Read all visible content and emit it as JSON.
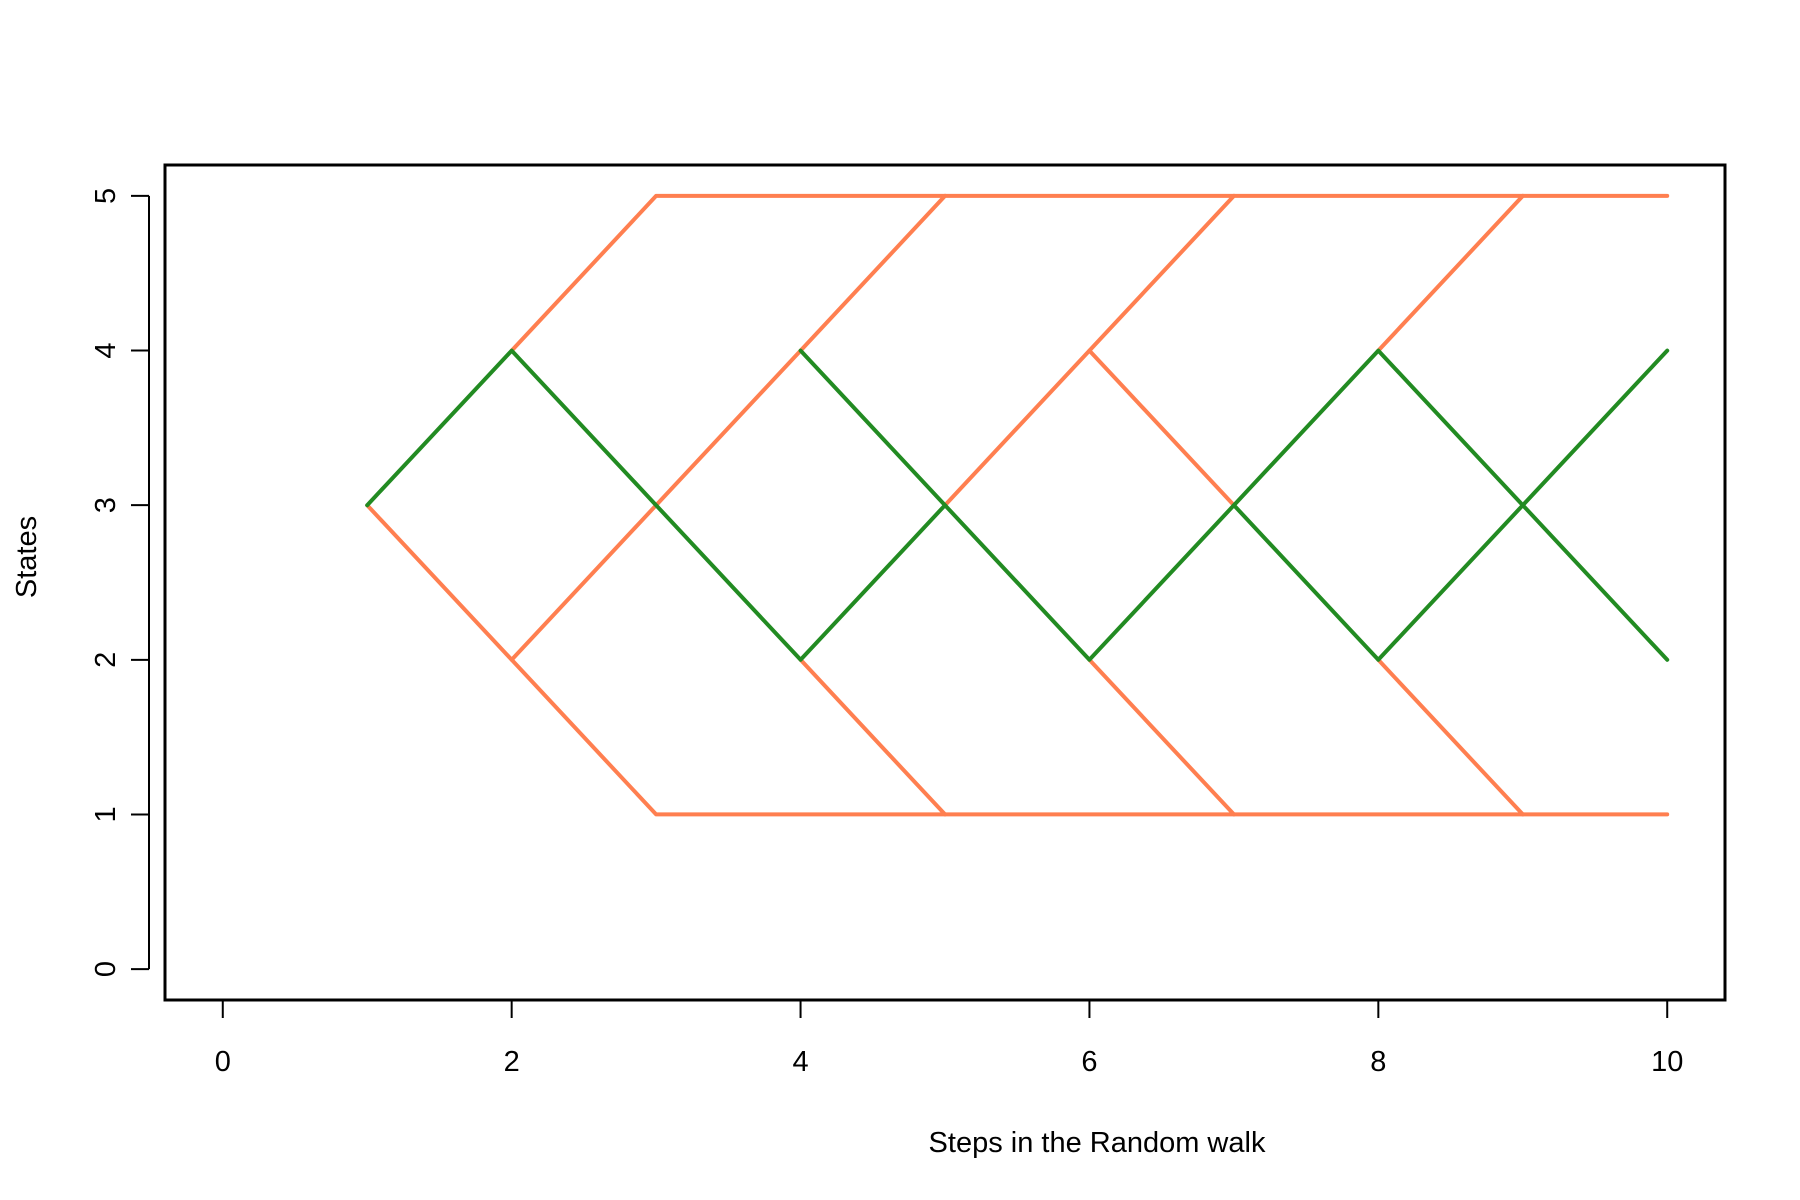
{
  "chart_data": {
    "type": "line",
    "title": "",
    "xlabel": "Steps in the Random walk",
    "ylabel": "States",
    "xlim": [
      -0.4,
      10.4
    ],
    "ylim": [
      -0.2,
      5.2
    ],
    "x_ticks": [
      0,
      2,
      4,
      6,
      8,
      10
    ],
    "y_ticks": [
      0,
      1,
      2,
      3,
      4,
      5
    ],
    "grid": false,
    "legend": "none",
    "colors": {
      "possible": "#ff7f50",
      "observed": "#228b22"
    },
    "series": [
      {
        "role": "possible",
        "segments": [
          [
            [
              1,
              3
            ],
            [
              2,
              2
            ],
            [
              3,
              1
            ],
            [
              10,
              1
            ]
          ],
          [
            [
              2,
              4
            ],
            [
              3,
              5
            ],
            [
              10,
              5
            ]
          ],
          [
            [
              2,
              2
            ],
            [
              3,
              3
            ],
            [
              4,
              4
            ],
            [
              5,
              5
            ]
          ],
          [
            [
              4,
              2
            ],
            [
              5,
              1
            ]
          ],
          [
            [
              5,
              3
            ],
            [
              6,
              4
            ],
            [
              7,
              5
            ]
          ],
          [
            [
              6,
              4
            ],
            [
              7,
              3
            ]
          ],
          [
            [
              6,
              2
            ],
            [
              7,
              1
            ]
          ],
          [
            [
              8,
              4
            ],
            [
              9,
              5
            ]
          ],
          [
            [
              8,
              2
            ],
            [
              9,
              1
            ]
          ]
        ]
      },
      {
        "role": "observed",
        "segments": [
          [
            [
              1,
              3
            ],
            [
              2,
              4
            ],
            [
              3,
              3
            ],
            [
              4,
              2
            ],
            [
              5,
              3
            ],
            [
              6,
              2
            ],
            [
              7,
              3
            ],
            [
              8,
              4
            ],
            [
              9,
              3
            ],
            [
              10,
              2
            ]
          ],
          [
            [
              4,
              4
            ],
            [
              5,
              3
            ]
          ],
          [
            [
              7,
              3
            ],
            [
              8,
              2
            ],
            [
              9,
              3
            ],
            [
              10,
              4
            ]
          ]
        ]
      }
    ]
  }
}
